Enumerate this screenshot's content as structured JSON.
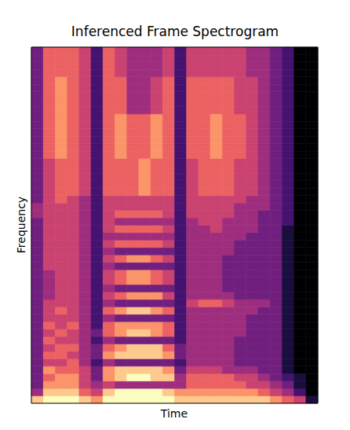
{
  "chart_data": {
    "type": "heatmap",
    "title": "Inferenced Frame Spectrogram",
    "x_label": "Time",
    "y_label": "Frequency",
    "xlim": [
      0,
      24
    ],
    "ylim": [
      0,
      48
    ],
    "tick_labels": false,
    "color": "magma",
    "zlim": [
      0,
      9
    ],
    "z": [
      [
        8,
        9,
        9,
        9,
        8,
        7,
        9,
        9,
        9,
        9,
        9,
        9,
        8,
        8,
        8,
        8,
        8,
        8,
        8,
        8,
        7,
        6,
        5,
        1
      ],
      [
        4,
        8,
        8,
        8,
        6,
        5,
        8,
        9,
        9,
        9,
        9,
        8,
        7,
        7,
        7,
        7,
        7,
        7,
        7,
        6,
        5,
        4,
        2,
        0
      ],
      [
        3,
        7,
        7,
        7,
        5,
        4,
        5,
        4,
        4,
        4,
        4,
        4,
        4,
        6,
        6,
        6,
        6,
        6,
        5,
        5,
        4,
        3,
        1,
        0
      ],
      [
        3,
        6,
        7,
        7,
        5,
        3,
        7,
        8,
        9,
        9,
        8,
        8,
        4,
        6,
        6,
        6,
        6,
        5,
        5,
        4,
        3,
        2,
        1,
        0
      ],
      [
        3,
        7,
        6,
        6,
        5,
        3,
        7,
        8,
        8,
        8,
        8,
        7,
        3,
        5,
        5,
        5,
        4,
        4,
        4,
        3,
        3,
        1,
        0,
        0
      ],
      [
        3,
        5,
        5,
        6,
        4,
        2,
        4,
        3,
        3,
        3,
        3,
        3,
        2,
        4,
        4,
        4,
        4,
        3,
        3,
        3,
        3,
        1,
        0,
        0
      ],
      [
        3,
        6,
        6,
        5,
        4,
        3,
        7,
        8,
        8,
        8,
        8,
        7,
        3,
        4,
        4,
        4,
        4,
        3,
        3,
        3,
        3,
        1,
        0,
        0
      ],
      [
        3,
        5,
        6,
        6,
        4,
        3,
        6,
        7,
        8,
        8,
        8,
        6,
        3,
        4,
        4,
        4,
        4,
        3,
        3,
        3,
        3,
        1,
        0,
        0
      ],
      [
        3,
        6,
        5,
        5,
        4,
        2,
        4,
        3,
        3,
        3,
        3,
        3,
        2,
        4,
        4,
        4,
        4,
        3,
        3,
        3,
        3,
        1,
        0,
        0
      ],
      [
        3,
        5,
        6,
        5,
        4,
        3,
        6,
        7,
        8,
        8,
        7,
        6,
        2,
        4,
        4,
        4,
        4,
        4,
        3,
        3,
        3,
        1,
        0,
        0
      ],
      [
        3,
        6,
        5,
        6,
        4,
        2,
        6,
        7,
        7,
        7,
        7,
        6,
        2,
        4,
        4,
        4,
        4,
        4,
        3,
        3,
        3,
        1,
        0,
        0
      ],
      [
        3,
        5,
        5,
        5,
        4,
        2,
        4,
        3,
        3,
        3,
        3,
        3,
        2,
        4,
        4,
        4,
        4,
        4,
        3,
        3,
        3,
        1,
        0,
        0
      ],
      [
        3,
        5,
        6,
        5,
        4,
        2,
        6,
        7,
        8,
        8,
        7,
        6,
        2,
        4,
        4,
        4,
        4,
        4,
        4,
        3,
        3,
        1,
        0,
        0
      ],
      [
        3,
        5,
        5,
        5,
        4,
        2,
        4,
        3,
        3,
        3,
        3,
        3,
        2,
        5,
        6,
        6,
        5,
        4,
        4,
        4,
        3,
        1,
        0,
        0
      ],
      [
        3,
        4,
        5,
        5,
        4,
        2,
        5,
        6,
        7,
        7,
        7,
        5,
        2,
        4,
        4,
        4,
        4,
        3,
        3,
        3,
        3,
        1,
        0,
        0
      ],
      [
        3,
        4,
        5,
        5,
        4,
        2,
        4,
        3,
        3,
        3,
        3,
        3,
        2,
        4,
        4,
        4,
        3,
        3,
        3,
        3,
        3,
        1,
        0,
        0
      ],
      [
        3,
        4,
        5,
        5,
        4,
        2,
        5,
        6,
        7,
        7,
        6,
        5,
        2,
        4,
        4,
        4,
        3,
        3,
        3,
        3,
        3,
        1,
        0,
        0
      ],
      [
        3,
        4,
        5,
        5,
        4,
        2,
        5,
        6,
        7,
        7,
        6,
        5,
        2,
        4,
        4,
        4,
        3,
        3,
        3,
        3,
        3,
        1,
        0,
        0
      ],
      [
        3,
        5,
        5,
        5,
        4,
        2,
        4,
        3,
        3,
        3,
        3,
        3,
        2,
        4,
        4,
        4,
        3,
        3,
        3,
        3,
        3,
        1,
        0,
        0
      ],
      [
        3,
        5,
        5,
        5,
        4,
        2,
        5,
        6,
        7,
        7,
        6,
        5,
        2,
        4,
        4,
        4,
        3,
        3,
        3,
        3,
        3,
        1,
        0,
        0
      ],
      [
        3,
        5,
        5,
        5,
        4,
        2,
        4,
        3,
        3,
        3,
        3,
        3,
        2,
        4,
        4,
        4,
        4,
        3,
        3,
        3,
        3,
        1,
        0,
        0
      ],
      [
        3,
        5,
        5,
        5,
        4,
        2,
        5,
        6,
        6,
        6,
        6,
        5,
        2,
        4,
        4,
        4,
        4,
        3,
        3,
        3,
        3,
        1,
        0,
        0
      ],
      [
        3,
        5,
        5,
        5,
        4,
        2,
        4,
        4,
        4,
        4,
        4,
        4,
        2,
        4,
        4,
        4,
        4,
        4,
        3,
        3,
        3,
        1,
        0,
        0
      ],
      [
        3,
        5,
        5,
        5,
        4,
        2,
        5,
        6,
        6,
        6,
        6,
        5,
        2,
        4,
        4,
        5,
        4,
        4,
        4,
        3,
        3,
        1,
        0,
        0
      ],
      [
        3,
        5,
        5,
        5,
        4,
        2,
        5,
        4,
        4,
        4,
        4,
        4,
        2,
        4,
        5,
        5,
        4,
        4,
        4,
        3,
        3,
        2,
        0,
        0
      ],
      [
        4,
        5,
        5,
        5,
        4,
        2,
        5,
        6,
        6,
        6,
        6,
        5,
        2,
        5,
        5,
        5,
        5,
        4,
        4,
        3,
        3,
        2,
        0,
        0
      ],
      [
        4,
        5,
        5,
        5,
        4,
        2,
        5,
        5,
        5,
        5,
        5,
        5,
        2,
        5,
        5,
        5,
        5,
        4,
        4,
        4,
        3,
        2,
        0,
        0
      ],
      [
        3,
        5,
        6,
        5,
        4,
        2,
        5,
        5,
        5,
        5,
        5,
        5,
        2,
        5,
        5,
        5,
        5,
        5,
        4,
        4,
        3,
        2,
        0,
        0
      ],
      [
        3,
        5,
        6,
        6,
        5,
        2,
        6,
        6,
        6,
        7,
        6,
        6,
        2,
        5,
        6,
        6,
        6,
        5,
        5,
        4,
        3,
        2,
        0,
        0
      ],
      [
        3,
        5,
        6,
        6,
        5,
        2,
        6,
        6,
        6,
        7,
        6,
        6,
        2,
        5,
        6,
        6,
        6,
        5,
        5,
        4,
        3,
        2,
        0,
        0
      ],
      [
        3,
        5,
        6,
        6,
        5,
        2,
        6,
        6,
        6,
        7,
        6,
        6,
        2,
        5,
        6,
        6,
        6,
        5,
        5,
        4,
        3,
        2,
        0,
        0
      ],
      [
        3,
        5,
        6,
        6,
        5,
        2,
        6,
        6,
        6,
        7,
        6,
        6,
        2,
        5,
        6,
        6,
        6,
        5,
        5,
        4,
        3,
        2,
        0,
        0
      ],
      [
        3,
        5,
        6,
        6,
        5,
        2,
        6,
        6,
        6,
        7,
        6,
        6,
        2,
        5,
        6,
        6,
        6,
        5,
        5,
        4,
        3,
        2,
        0,
        0
      ],
      [
        3,
        6,
        7,
        6,
        5,
        2,
        6,
        7,
        6,
        6,
        7,
        6,
        2,
        6,
        6,
        7,
        6,
        6,
        5,
        4,
        3,
        2,
        0,
        0
      ],
      [
        3,
        6,
        7,
        6,
        5,
        2,
        6,
        7,
        6,
        6,
        7,
        6,
        2,
        6,
        6,
        7,
        6,
        6,
        5,
        4,
        3,
        2,
        0,
        0
      ],
      [
        3,
        6,
        7,
        6,
        5,
        2,
        6,
        7,
        6,
        6,
        7,
        6,
        2,
        6,
        6,
        7,
        6,
        6,
        5,
        4,
        3,
        2,
        0,
        0
      ],
      [
        3,
        6,
        7,
        6,
        5,
        2,
        6,
        7,
        6,
        6,
        7,
        6,
        2,
        6,
        6,
        7,
        6,
        6,
        5,
        4,
        3,
        2,
        0,
        0
      ],
      [
        3,
        6,
        7,
        6,
        5,
        2,
        6,
        7,
        6,
        6,
        7,
        6,
        2,
        6,
        6,
        7,
        6,
        6,
        5,
        4,
        3,
        2,
        0,
        0
      ],
      [
        3,
        6,
        7,
        6,
        5,
        2,
        6,
        7,
        6,
        6,
        7,
        6,
        2,
        6,
        6,
        7,
        6,
        6,
        5,
        4,
        3,
        2,
        0,
        0
      ],
      [
        3,
        6,
        7,
        6,
        5,
        2,
        6,
        6,
        4,
        4,
        5,
        6,
        2,
        6,
        6,
        6,
        6,
        5,
        5,
        4,
        3,
        2,
        0,
        0
      ],
      [
        3,
        6,
        7,
        6,
        5,
        2,
        6,
        6,
        4,
        4,
        5,
        6,
        2,
        6,
        6,
        6,
        6,
        5,
        5,
        4,
        3,
        2,
        0,
        0
      ],
      [
        3,
        6,
        7,
        6,
        5,
        2,
        6,
        6,
        4,
        4,
        5,
        6,
        2,
        6,
        6,
        6,
        6,
        5,
        5,
        4,
        3,
        2,
        0,
        0
      ],
      [
        3,
        6,
        7,
        6,
        5,
        2,
        6,
        6,
        4,
        4,
        5,
        6,
        2,
        6,
        6,
        6,
        6,
        5,
        5,
        4,
        3,
        2,
        0,
        0
      ],
      [
        3,
        6,
        7,
        6,
        5,
        2,
        6,
        6,
        4,
        4,
        5,
        6,
        2,
        6,
        6,
        6,
        6,
        5,
        5,
        4,
        3,
        2,
        0,
        0
      ],
      [
        3,
        6,
        6,
        6,
        5,
        2,
        6,
        5,
        4,
        4,
        4,
        5,
        2,
        5,
        5,
        5,
        5,
        5,
        4,
        4,
        3,
        2,
        0,
        0
      ],
      [
        3,
        6,
        6,
        6,
        5,
        2,
        6,
        5,
        4,
        4,
        4,
        5,
        2,
        5,
        5,
        5,
        5,
        5,
        4,
        4,
        3,
        2,
        0,
        0
      ],
      [
        3,
        6,
        6,
        6,
        5,
        2,
        6,
        5,
        4,
        4,
        4,
        5,
        2,
        5,
        5,
        5,
        5,
        5,
        4,
        4,
        3,
        2,
        0,
        0
      ],
      [
        3,
        6,
        6,
        6,
        5,
        2,
        6,
        5,
        4,
        4,
        4,
        5,
        2,
        5,
        5,
        5,
        5,
        5,
        4,
        4,
        3,
        2,
        0,
        0
      ]
    ]
  }
}
